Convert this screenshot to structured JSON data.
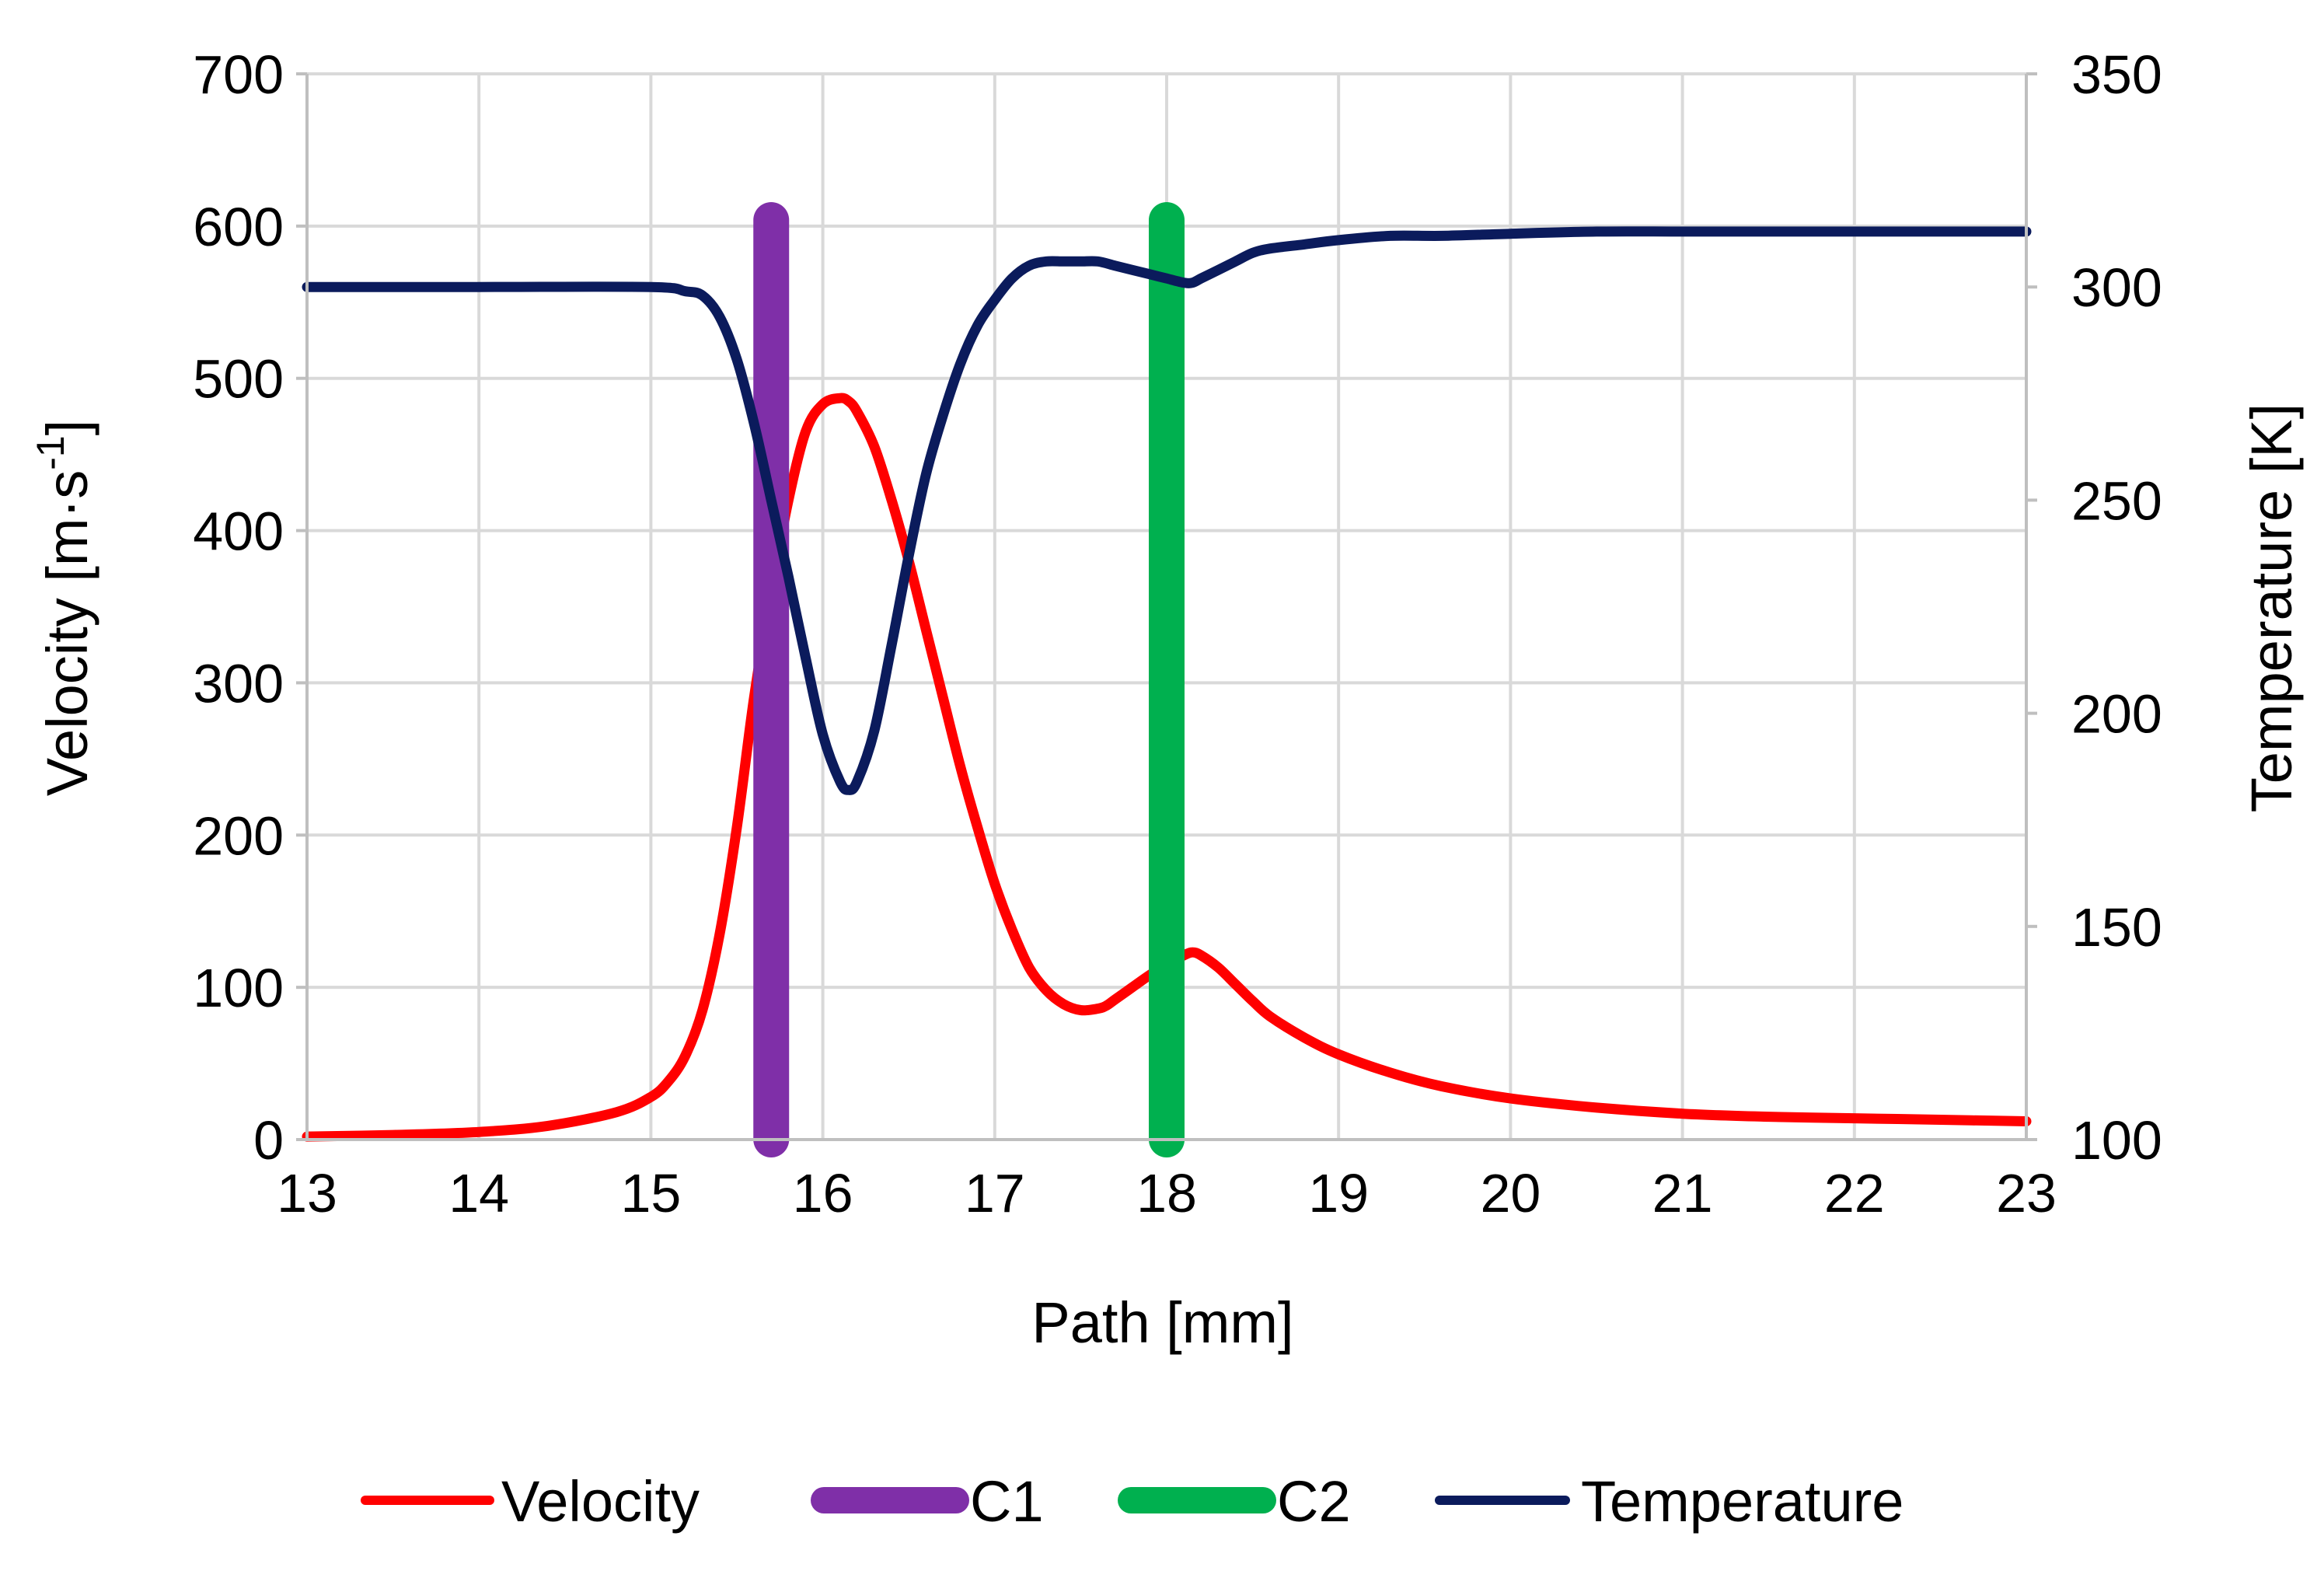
{
  "chart_data": {
    "type": "line",
    "xlabel": "Path [mm]",
    "ylabel_left": "Velocity [m·s",
    "ylabel_left_sup": "-1",
    "ylabel_left_end": "]",
    "ylabel_right": "Temperature [K]",
    "xlim": [
      13,
      23
    ],
    "ylim_left": [
      0,
      700
    ],
    "ylim_right": [
      100,
      350
    ],
    "x_ticks": [
      13,
      14,
      15,
      16,
      17,
      18,
      19,
      20,
      21,
      22,
      23
    ],
    "x_tick_labels": [
      "13",
      "14",
      "15",
      "16",
      "17",
      "18",
      "19",
      "20",
      "21",
      "22",
      "23"
    ],
    "y_left_ticks": [
      0,
      100,
      200,
      300,
      400,
      500,
      600,
      700
    ],
    "y_left_tick_labels": [
      "0",
      "100",
      "200",
      "300",
      "400",
      "500",
      "600",
      "700"
    ],
    "y_right_ticks": [
      100,
      150,
      200,
      250,
      300,
      350
    ],
    "y_right_tick_labels": [
      "100",
      "150",
      "200",
      "250",
      "300",
      "350"
    ],
    "grid": true,
    "legend_position": "bottom",
    "series": [
      {
        "name": "Velocity",
        "axis": "left",
        "color": "#ff0000",
        "x": [
          13.0,
          13.5,
          14.0,
          14.4,
          14.8,
          15.0,
          15.1,
          15.2,
          15.3,
          15.4,
          15.5,
          15.6,
          15.7,
          15.8,
          15.9,
          16.0,
          16.1,
          16.15,
          16.2,
          16.3,
          16.4,
          16.5,
          16.6,
          16.7,
          16.8,
          16.9,
          17.0,
          17.1,
          17.2,
          17.3,
          17.4,
          17.5,
          17.6,
          17.65,
          17.7,
          17.8,
          17.9,
          18.0,
          18.1,
          18.15,
          18.2,
          18.3,
          18.4,
          18.5,
          18.6,
          18.8,
          19.0,
          19.3,
          19.6,
          20.0,
          20.5,
          21.0,
          21.5,
          22.0,
          22.5,
          23.0
        ],
        "values": [
          2,
          3,
          5,
          9,
          18,
          28,
          38,
          55,
          85,
          135,
          205,
          290,
          360,
          420,
          465,
          483,
          487,
          485,
          478,
          455,
          420,
          380,
          335,
          290,
          245,
          205,
          168,
          138,
          113,
          98,
          89,
          85,
          86,
          88,
          92,
          100,
          108,
          115,
          121,
          123,
          121,
          113,
          102,
          91,
          81,
          67,
          56,
          44,
          35,
          27,
          21,
          17,
          15,
          14,
          13,
          12
        ]
      },
      {
        "name": "C1",
        "axis": "left",
        "color": "#7f2fa8",
        "x": [
          15.7,
          15.7
        ],
        "values": [
          0,
          604
        ]
      },
      {
        "name": "C2",
        "axis": "left",
        "color": "#00b04f",
        "x": [
          18.0,
          18.0
        ],
        "values": [
          0,
          604
        ]
      },
      {
        "name": "Temperature",
        "axis": "right",
        "color": "#0b1b5c",
        "x": [
          13.0,
          14.0,
          15.0,
          15.2,
          15.3,
          15.4,
          15.5,
          15.6,
          15.7,
          15.8,
          15.9,
          16.0,
          16.1,
          16.15,
          16.2,
          16.3,
          16.4,
          16.5,
          16.6,
          16.7,
          16.8,
          16.9,
          17.0,
          17.1,
          17.2,
          17.3,
          17.4,
          17.5,
          17.6,
          17.7,
          17.8,
          17.9,
          18.0,
          18.1,
          18.15,
          18.2,
          18.3,
          18.4,
          18.5,
          18.6,
          18.8,
          19.0,
          19.3,
          19.6,
          20.0,
          20.5,
          21.0,
          21.5,
          22.0,
          22.5,
          23.0
        ],
        "values": [
          300,
          300,
          300,
          299,
          298,
          293,
          283,
          268,
          250,
          232,
          213,
          195,
          184,
          182,
          184,
          196,
          216,
          237,
          256,
          270,
          282,
          291,
          297,
          302,
          305,
          306,
          306,
          306,
          306,
          305,
          304,
          303,
          302,
          301,
          301,
          302,
          304,
          306,
          308,
          309,
          310,
          311,
          312,
          312,
          312.5,
          313,
          313,
          313,
          313,
          313,
          313
        ]
      }
    ]
  }
}
